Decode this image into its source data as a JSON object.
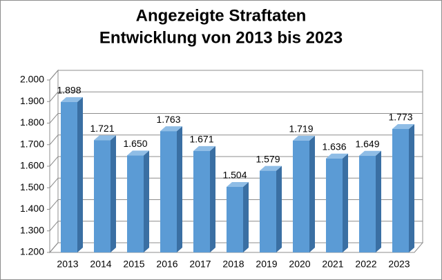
{
  "chart_data": {
    "type": "bar3d",
    "title": "Angezeigte Straftaten",
    "subtitle": "Entwicklung von 2013 bis 2023",
    "categories": [
      "2013",
      "2014",
      "2015",
      "2016",
      "2017",
      "2018",
      "2019",
      "2020",
      "2021",
      "2022",
      "2023"
    ],
    "values": [
      1898,
      1721,
      1650,
      1763,
      1671,
      1504,
      1579,
      1719,
      1636,
      1649,
      1773
    ],
    "value_labels": [
      "1.898",
      "1.721",
      "1.650",
      "1.763",
      "1.671",
      "1.504",
      "1.579",
      "1.719",
      "1.636",
      "1.649",
      "1.773"
    ],
    "color": "#5b9bd5",
    "ylim": [
      1200,
      2000
    ],
    "yticks": [
      {
        "value": 1200,
        "label": "1.200"
      },
      {
        "value": 1300,
        "label": "1.300"
      },
      {
        "value": 1400,
        "label": "1.400"
      },
      {
        "value": 1500,
        "label": "1.500"
      },
      {
        "value": 1600,
        "label": "1.600"
      },
      {
        "value": 1700,
        "label": "1.700"
      },
      {
        "value": 1800,
        "label": "1.800"
      },
      {
        "value": 1900,
        "label": "1.900"
      },
      {
        "value": 2000,
        "label": "2.000"
      }
    ],
    "grid": true
  }
}
